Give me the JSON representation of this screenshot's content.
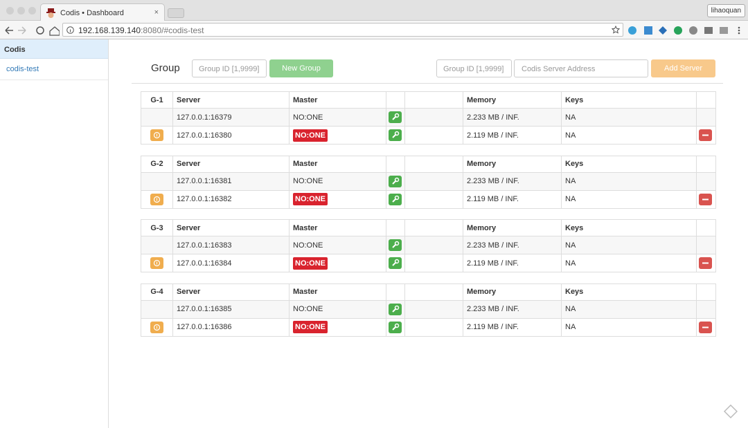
{
  "browser": {
    "tab_title": "Codis • Dashboard",
    "user": "lihaoquan",
    "url_host": "192.168.139.140",
    "url_rest": ":8080/#codis-test"
  },
  "sidebar": {
    "title": "Codis",
    "items": [
      "codis-test"
    ]
  },
  "toolbar": {
    "heading": "Group",
    "group_id_placeholder": "Group ID [1,9999]",
    "new_group": "New Group",
    "server_group_id_placeholder": "Group ID [1,9999]",
    "server_address_placeholder": "Codis Server Address",
    "add_server": "Add Server"
  },
  "table": {
    "columns": [
      "Server",
      "Master",
      "Memory",
      "Keys"
    ],
    "groups": [
      {
        "id": "G-1",
        "servers": [
          {
            "address": "127.0.0.1:16379",
            "master": "NO:ONE",
            "memory": "2.233 MB / INF.",
            "keys": "NA"
          },
          {
            "address": "127.0.0.1:16380",
            "master": "NO:ONE",
            "memory": "2.119 MB / INF.",
            "keys": "NA"
          }
        ]
      },
      {
        "id": "G-2",
        "servers": [
          {
            "address": "127.0.0.1:16381",
            "master": "NO:ONE",
            "memory": "2.233 MB / INF.",
            "keys": "NA"
          },
          {
            "address": "127.0.0.1:16382",
            "master": "NO:ONE",
            "memory": "2.119 MB / INF.",
            "keys": "NA"
          }
        ]
      },
      {
        "id": "G-3",
        "servers": [
          {
            "address": "127.0.0.1:16383",
            "master": "NO:ONE",
            "memory": "2.233 MB / INF.",
            "keys": "NA"
          },
          {
            "address": "127.0.0.1:16384",
            "master": "NO:ONE",
            "memory": "2.119 MB / INF.",
            "keys": "NA"
          }
        ]
      },
      {
        "id": "G-4",
        "servers": [
          {
            "address": "127.0.0.1:16385",
            "master": "NO:ONE",
            "memory": "2.233 MB / INF.",
            "keys": "NA"
          },
          {
            "address": "127.0.0.1:16386",
            "master": "NO:ONE",
            "memory": "2.119 MB / INF.",
            "keys": "NA"
          }
        ]
      }
    ]
  }
}
